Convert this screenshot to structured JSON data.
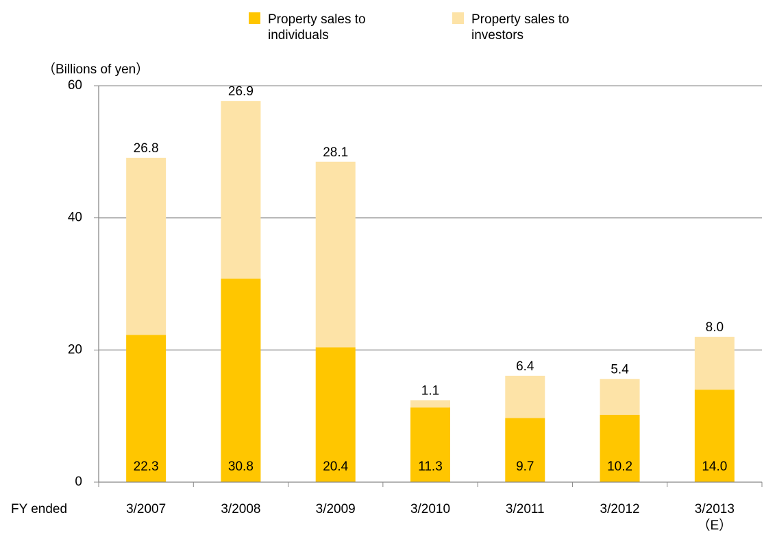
{
  "chart_data": {
    "type": "stacked_bar",
    "y_label": "（Billions of yen）",
    "x_label": "FY ended",
    "categories": [
      "3/2007",
      "3/2008",
      "3/2009",
      "3/2010",
      "3/2011",
      "3/2012",
      "3/2013\n（E）"
    ],
    "series": [
      {
        "name": "Property sales to individuals",
        "color": "#ffc600",
        "values": [
          22.3,
          30.8,
          20.4,
          11.3,
          9.7,
          10.2,
          14.0
        ],
        "value_labels": [
          "22.3",
          "30.8",
          "20.4",
          "11.3",
          "9.7",
          "10.2",
          "14.0"
        ]
      },
      {
        "name": "Property sales to investors",
        "color": "#fde3a7",
        "values": [
          26.8,
          26.9,
          28.1,
          1.1,
          6.4,
          5.4,
          8.0
        ],
        "value_labels": [
          "26.8",
          "26.9",
          "28.1",
          "1.1",
          "6.4",
          "5.4",
          "8.0"
        ]
      }
    ],
    "ylim": [
      0,
      60
    ],
    "yticks": [
      0,
      20,
      40,
      60
    ],
    "grid": true,
    "legend": "top"
  }
}
